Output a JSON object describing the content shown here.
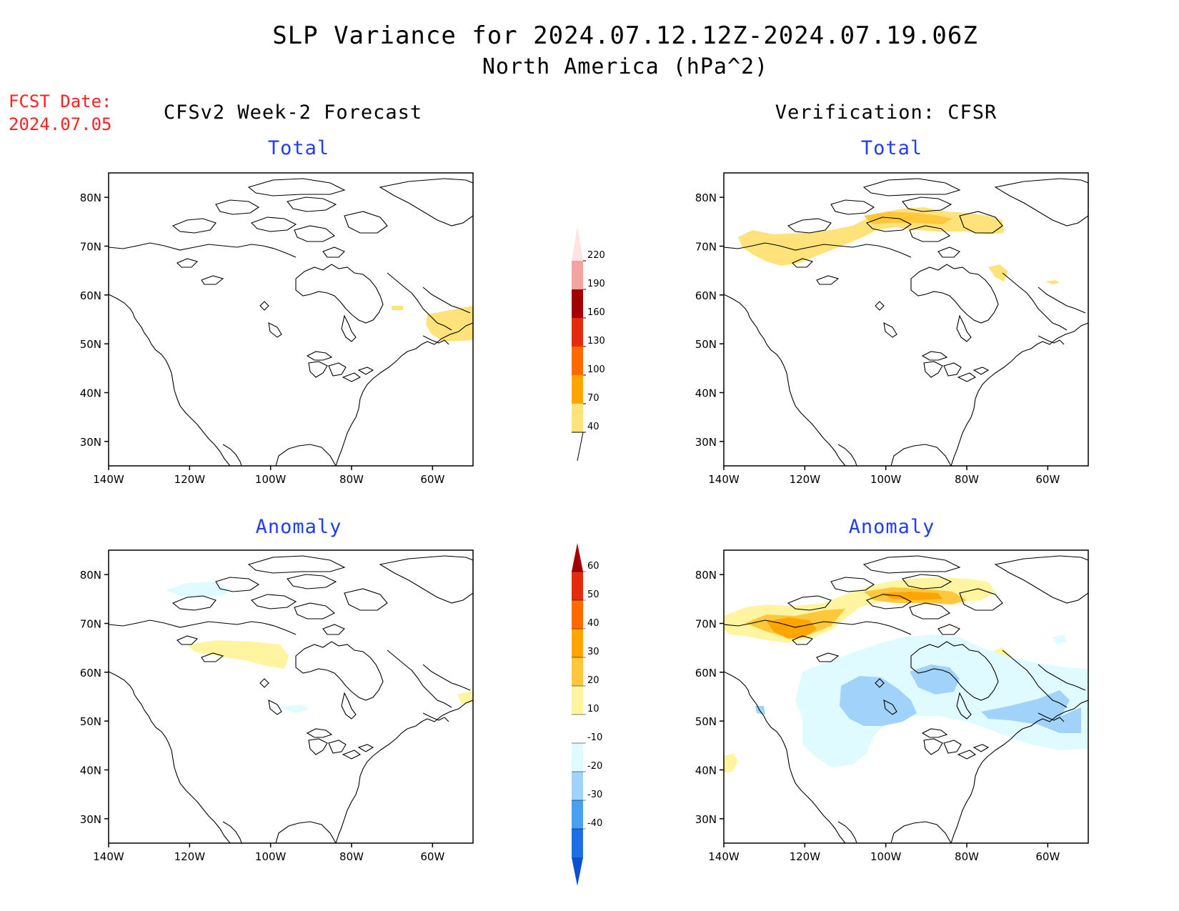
{
  "title": "SLP Variance for 2024.07.12.12Z-2024.07.19.06Z",
  "subtitle": "North America (hPa^2)",
  "fcst_date": {
    "label": "FCST Date:",
    "value": "2024.07.05"
  },
  "columns": {
    "left": "CFSv2 Week-2 Forecast",
    "right": "Verification: CFSR"
  },
  "panel_titles": {
    "total": "Total",
    "anomaly": "Anomaly"
  },
  "axes": {
    "lat_ticks": [
      "80N",
      "70N",
      "60N",
      "50N",
      "40N",
      "30N"
    ],
    "lon_ticks": [
      "140W",
      "120W",
      "100W",
      "80W",
      "60W"
    ],
    "lat_values": [
      80,
      70,
      60,
      50,
      40,
      30
    ],
    "lon_values": [
      -140,
      -120,
      -100,
      -80,
      -60
    ],
    "lon_range": [
      -140,
      -50
    ],
    "lat_range": [
      25,
      85
    ]
  },
  "colorbars": {
    "total": {
      "levels": [
        "40",
        "70",
        "100",
        "130",
        "160",
        "190",
        "220"
      ],
      "colors": [
        "#ffe27a",
        "#ffa500",
        "#ff6a00",
        "#e52b0d",
        "#a50000",
        "#f4a3a3",
        "#fde3e3"
      ]
    },
    "anomaly": {
      "levels": [
        "60",
        "50",
        "40",
        "30",
        "20",
        "10",
        "-10",
        "-20",
        "-30",
        "-40"
      ],
      "colors_top_to_bottom": [
        "#a50000",
        "#e52b0d",
        "#ff6a00",
        "#ffa500",
        "#ffc83c",
        "#fff5a0",
        "#ffffff",
        "#e0fbff",
        "#a0d2fa",
        "#4aa0f0",
        "#1e6ee6",
        "#0a50d2"
      ]
    }
  },
  "colors": {
    "title_red": "#ff2020",
    "panel_title_blue": "#1f3cff"
  }
}
